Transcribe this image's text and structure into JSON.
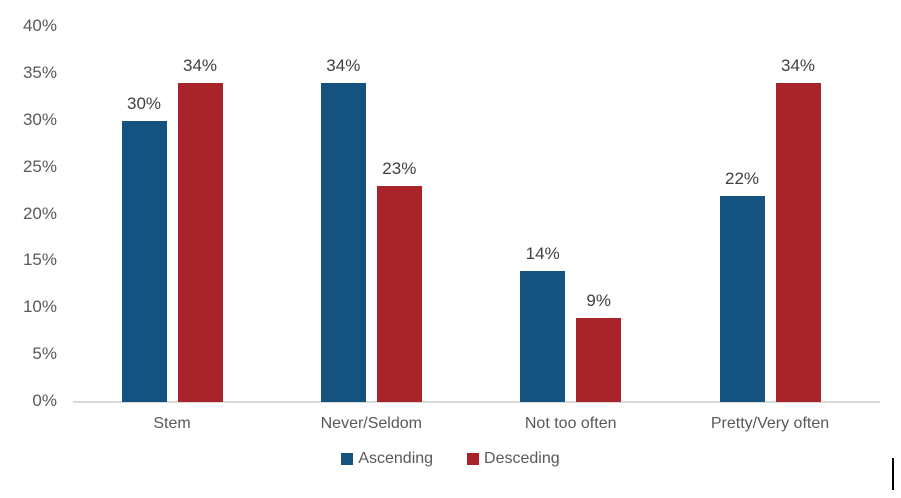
{
  "chart_data": {
    "type": "bar",
    "title": "",
    "xlabel": "",
    "ylabel": "",
    "categories": [
      "Stem",
      "Never/Seldom",
      "Not too often",
      "Pretty/Very often"
    ],
    "series": [
      {
        "name": "Ascending",
        "color": "#14527F",
        "values": [
          30,
          34,
          14,
          22
        ]
      },
      {
        "name": "Desceding",
        "color": "#A8232A",
        "values": [
          34,
          23,
          9,
          34
        ]
      }
    ],
    "data_labels": [
      [
        "30%",
        "34%",
        "14%",
        "22%"
      ],
      [
        "34%",
        "23%",
        "9%",
        "34%"
      ]
    ],
    "y_ticks": [
      0,
      5,
      10,
      15,
      20,
      25,
      30,
      35,
      40
    ],
    "y_tick_labels": [
      "0%",
      "5%",
      "10%",
      "15%",
      "20%",
      "25%",
      "30%",
      "35%",
      "40%"
    ],
    "ylim": [
      0,
      40
    ],
    "grid": false,
    "legend_position": "bottom",
    "axis_line_color": "#d9d9d9",
    "tick_label_color": "#595959",
    "data_label_color": "#404040"
  }
}
